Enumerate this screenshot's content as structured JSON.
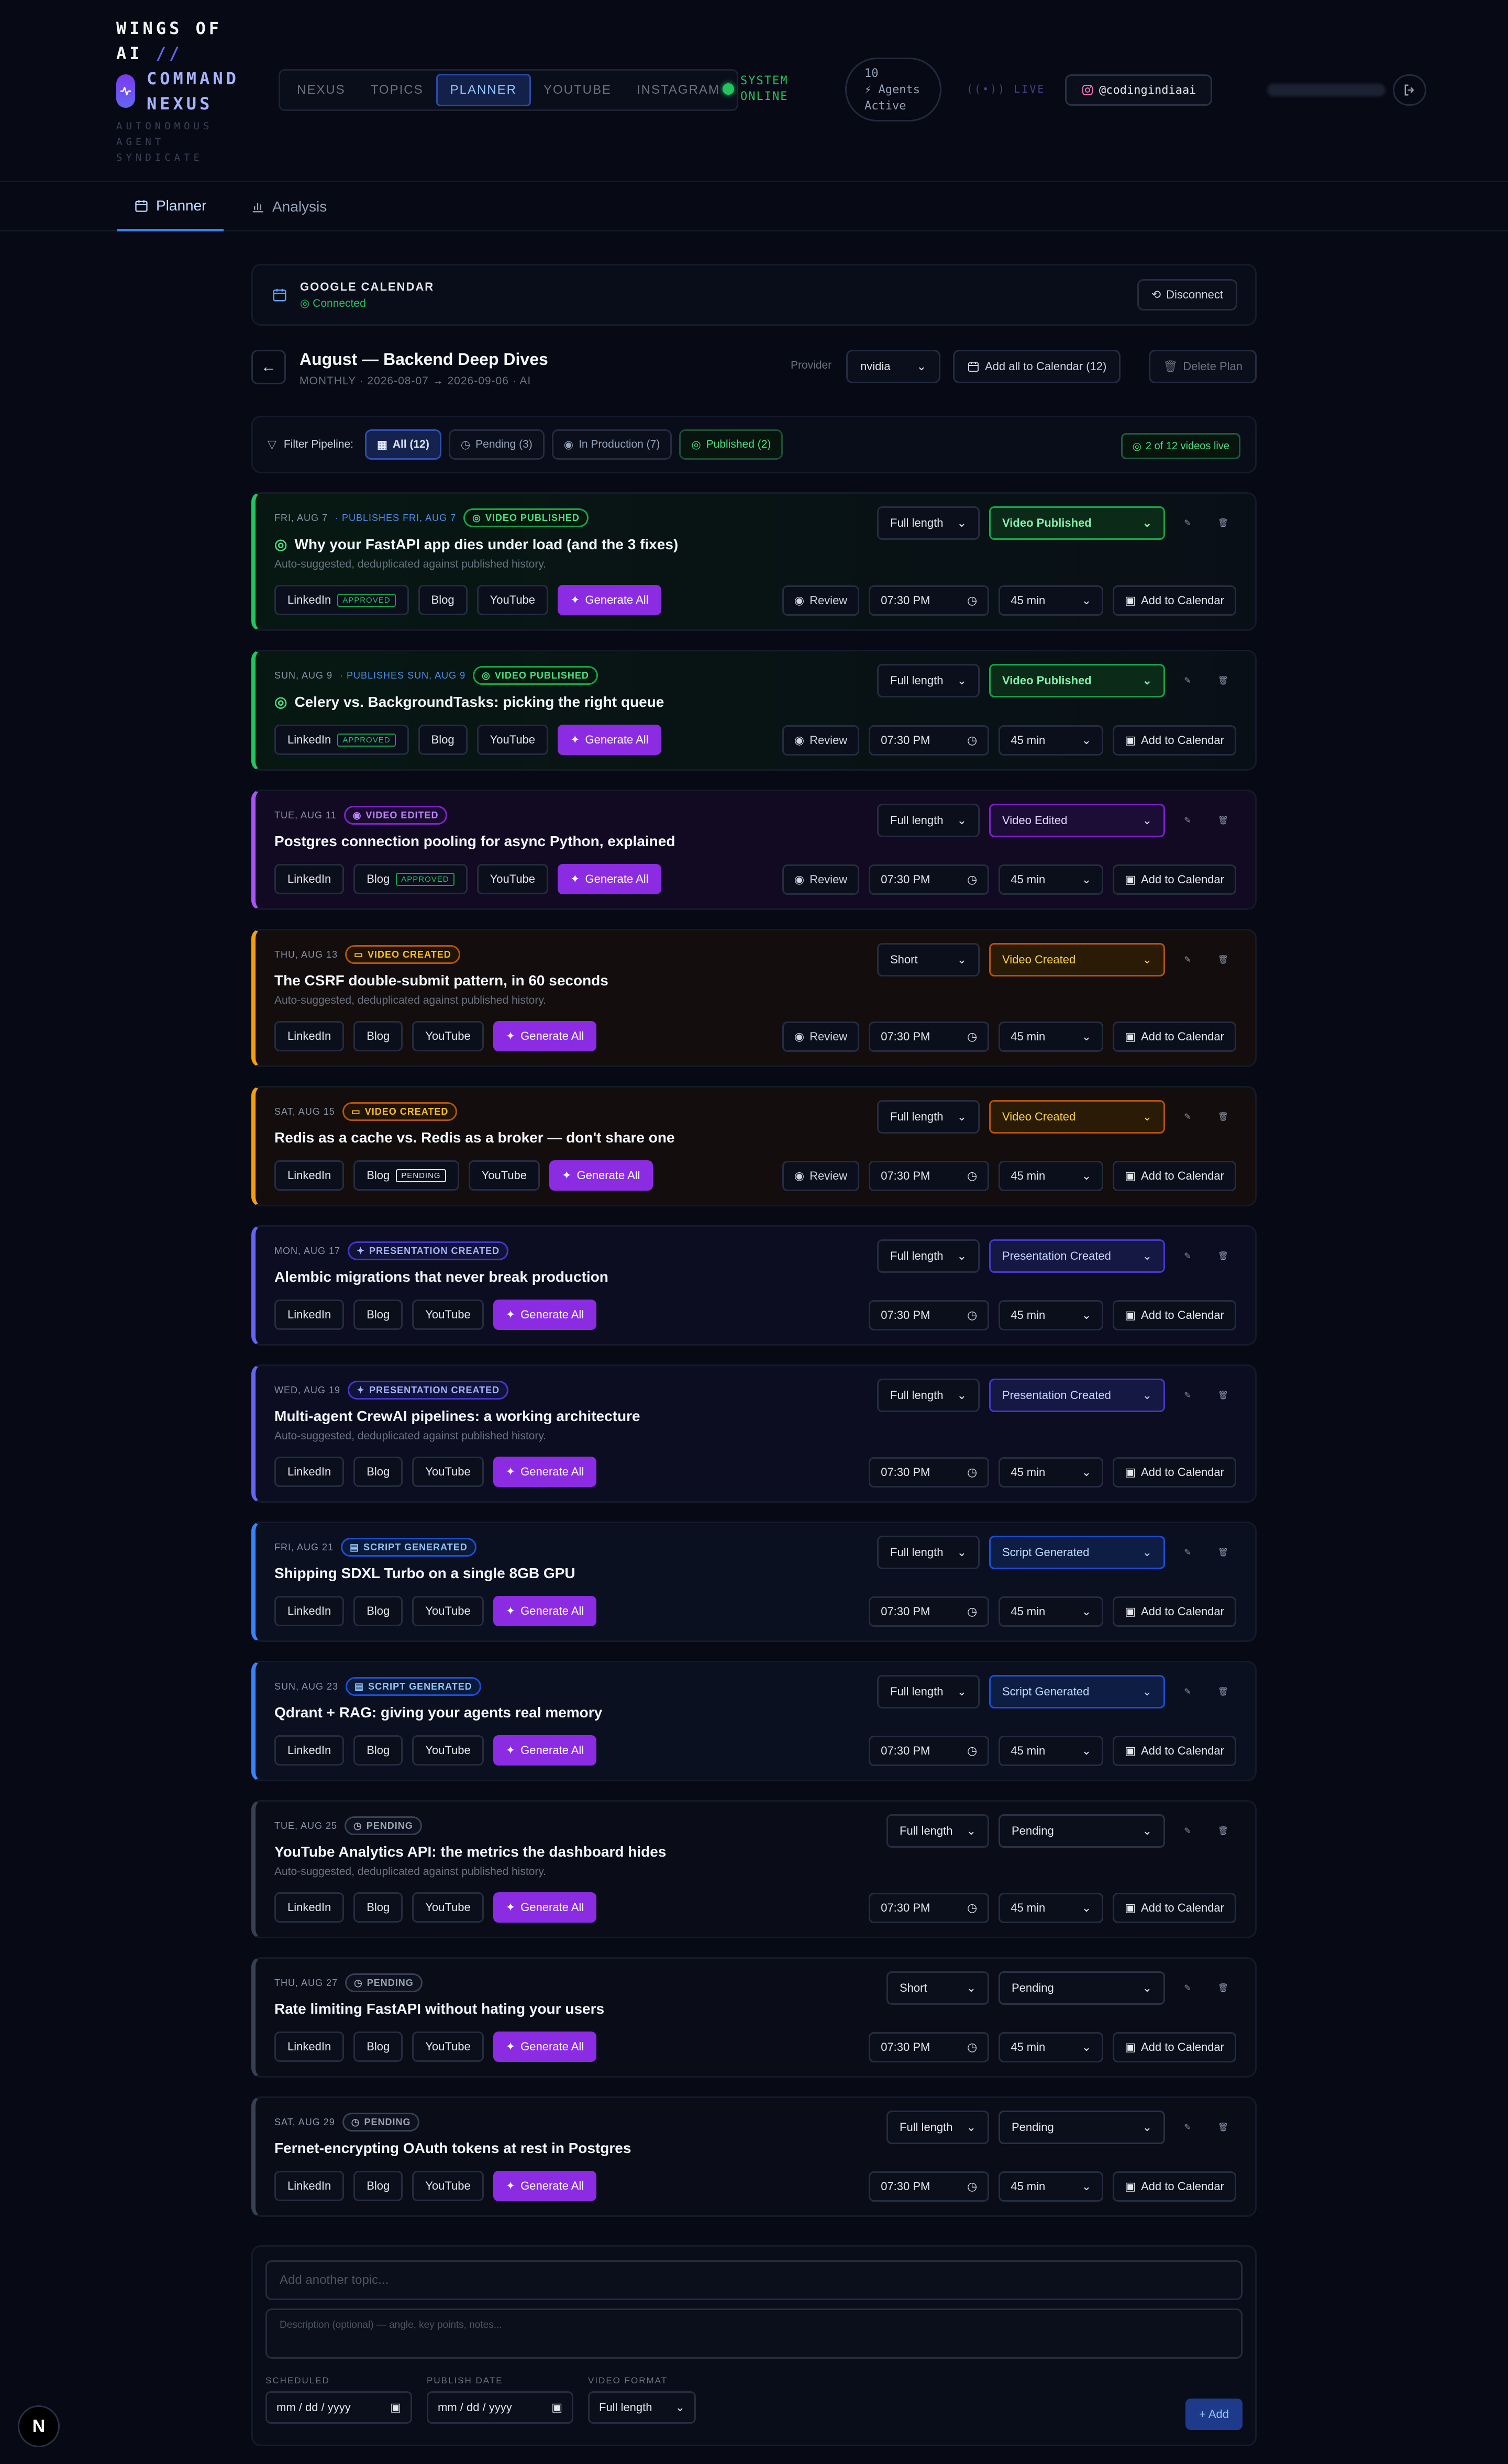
{
  "brand": {
    "line1": "WINGS OF",
    "line2a": "AI",
    "line2b": "//",
    "line3": "COMMAND",
    "line4": "NEXUS",
    "sub1": "AUTONOMOUS",
    "sub2": "AGENT",
    "sub3": "SYNDICATE"
  },
  "nav": {
    "tabs": [
      {
        "label": "NEXUS"
      },
      {
        "label": "TOPICS"
      },
      {
        "label": "PLANNER"
      },
      {
        "label": "YOUTUBE"
      },
      {
        "label": "INSTAGRAM"
      }
    ],
    "active": "PLANNER"
  },
  "status": {
    "line1": "SYSTEM",
    "line2": "ONLINE"
  },
  "agents": {
    "line1": "10",
    "line2": "Agents",
    "line3": "Active"
  },
  "live_label": "LIVE",
  "instagram_handle": "@codingindiaai",
  "subtabs": [
    {
      "label": "Planner"
    },
    {
      "label": "Analysis"
    }
  ],
  "gcal": {
    "title": "GOOGLE CALENDAR",
    "status": "Connected",
    "disconnect": "Disconnect"
  },
  "plan": {
    "back": "←",
    "title": "August — Backend Deep Dives",
    "meta": "MONTHLY · 2026-08-07 → 2026-09-06 · AI",
    "provider_label": "Provider",
    "provider_value": "nvidia",
    "add_all": "Add all to Calendar (12)",
    "delete": "Delete Plan"
  },
  "filter": {
    "label": "Filter Pipeline:",
    "chips": [
      {
        "label": "All (12)"
      },
      {
        "label": "Pending (3)"
      },
      {
        "label": "In Production (7)"
      },
      {
        "label": "Published (2)"
      }
    ],
    "live_count": "2 of 12 videos live"
  },
  "common": {
    "generate_all": "Generate All",
    "review": "Review",
    "time": "07:30 PM",
    "duration": "45 min",
    "add_to_calendar": "Add to Calendar",
    "channels": [
      "LinkedIn",
      "Blog",
      "YouTube"
    ]
  },
  "items": [
    {
      "date": "FRI, AUG 7",
      "publishes": "· PUBLISHES FRI, AUG 7",
      "badge": "VIDEO PUBLISHED",
      "title": "Why your FastAPI app dies under load (and the 3 fixes)",
      "desc": "Auto-suggested, deduplicated against published history.",
      "format": "Full length",
      "status": "Video Published",
      "linkedin_tag": "APPROVED",
      "blog_tag": "",
      "variant": "pub"
    },
    {
      "date": "SUN, AUG 9",
      "publishes": "· PUBLISHES SUN, AUG 9",
      "badge": "VIDEO PUBLISHED",
      "title": "Celery vs. BackgroundTasks: picking the right queue",
      "desc": "",
      "format": "Full length",
      "status": "Video Published",
      "linkedin_tag": "APPROVED",
      "blog_tag": "",
      "variant": "pub"
    },
    {
      "date": "TUE, AUG 11",
      "publishes": "",
      "badge": "VIDEO EDITED",
      "title": "Postgres connection pooling for async Python, explained",
      "desc": "",
      "format": "Full length",
      "status": "Video Edited",
      "linkedin_tag": "",
      "blog_tag": "APPROVED",
      "variant": "edit"
    },
    {
      "date": "THU, AUG 13",
      "publishes": "",
      "badge": "VIDEO CREATED",
      "title": "The CSRF double-submit pattern, in 60 seconds",
      "desc": "Auto-suggested, deduplicated against published history.",
      "format": "Short",
      "status": "Video Created",
      "linkedin_tag": "",
      "blog_tag": "",
      "variant": "crt"
    },
    {
      "date": "SAT, AUG 15",
      "publishes": "",
      "badge": "VIDEO CREATED",
      "title": "Redis as a cache vs. Redis as a broker — don't share one",
      "desc": "",
      "format": "Full length",
      "status": "Video Created",
      "linkedin_tag": "",
      "blog_tag": "PENDING",
      "variant": "crt"
    },
    {
      "date": "MON, AUG 17",
      "publishes": "",
      "badge": "PRESENTATION CREATED",
      "title": "Alembic migrations that never break production",
      "desc": "",
      "format": "Full length",
      "status": "Presentation Created",
      "linkedin_tag": "",
      "blog_tag": "",
      "variant": "pres"
    },
    {
      "date": "WED, AUG 19",
      "publishes": "",
      "badge": "PRESENTATION CREATED",
      "title": "Multi-agent CrewAI pipelines: a working architecture",
      "desc": "Auto-suggested, deduplicated against published history.",
      "format": "Full length",
      "status": "Presentation Created",
      "linkedin_tag": "",
      "blog_tag": "",
      "variant": "pres"
    },
    {
      "date": "FRI, AUG 21",
      "publishes": "",
      "badge": "SCRIPT GENERATED",
      "title": "Shipping SDXL Turbo on a single 8GB GPU",
      "desc": "",
      "format": "Full length",
      "status": "Script Generated",
      "linkedin_tag": "",
      "blog_tag": "",
      "variant": "scr"
    },
    {
      "date": "SUN, AUG 23",
      "publishes": "",
      "badge": "SCRIPT GENERATED",
      "title": "Qdrant + RAG: giving your agents real memory",
      "desc": "",
      "format": "Full length",
      "status": "Script Generated",
      "linkedin_tag": "",
      "blog_tag": "",
      "variant": "scr"
    },
    {
      "date": "TUE, AUG 25",
      "publishes": "",
      "badge": "PENDING",
      "title": "YouTube Analytics API: the metrics the dashboard hides",
      "desc": "Auto-suggested, deduplicated against published history.",
      "format": "Full length",
      "status": "Pending",
      "linkedin_tag": "",
      "blog_tag": "",
      "variant": "pend"
    },
    {
      "date": "THU, AUG 27",
      "publishes": "",
      "badge": "PENDING",
      "title": "Rate limiting FastAPI without hating your users",
      "desc": "",
      "format": "Short",
      "status": "Pending",
      "linkedin_tag": "",
      "blog_tag": "",
      "variant": "pend"
    },
    {
      "date": "SAT, AUG 29",
      "publishes": "",
      "badge": "PENDING",
      "title": "Fernet-encrypting OAuth tokens at rest in Postgres",
      "desc": "",
      "format": "Full length",
      "status": "Pending",
      "linkedin_tag": "",
      "blog_tag": "",
      "variant": "pend"
    }
  ],
  "addform": {
    "topic_placeholder": "Add another topic...",
    "desc_placeholder": "Description (optional) — angle, key points, notes...",
    "scheduled_label": "SCHEDULED",
    "publish_label": "PUBLISH DATE",
    "format_label": "VIDEO FORMAT",
    "date_placeholder": "mm / dd / yyyy",
    "format_value": "Full length",
    "add": "+ Add"
  },
  "next_badge": "N"
}
